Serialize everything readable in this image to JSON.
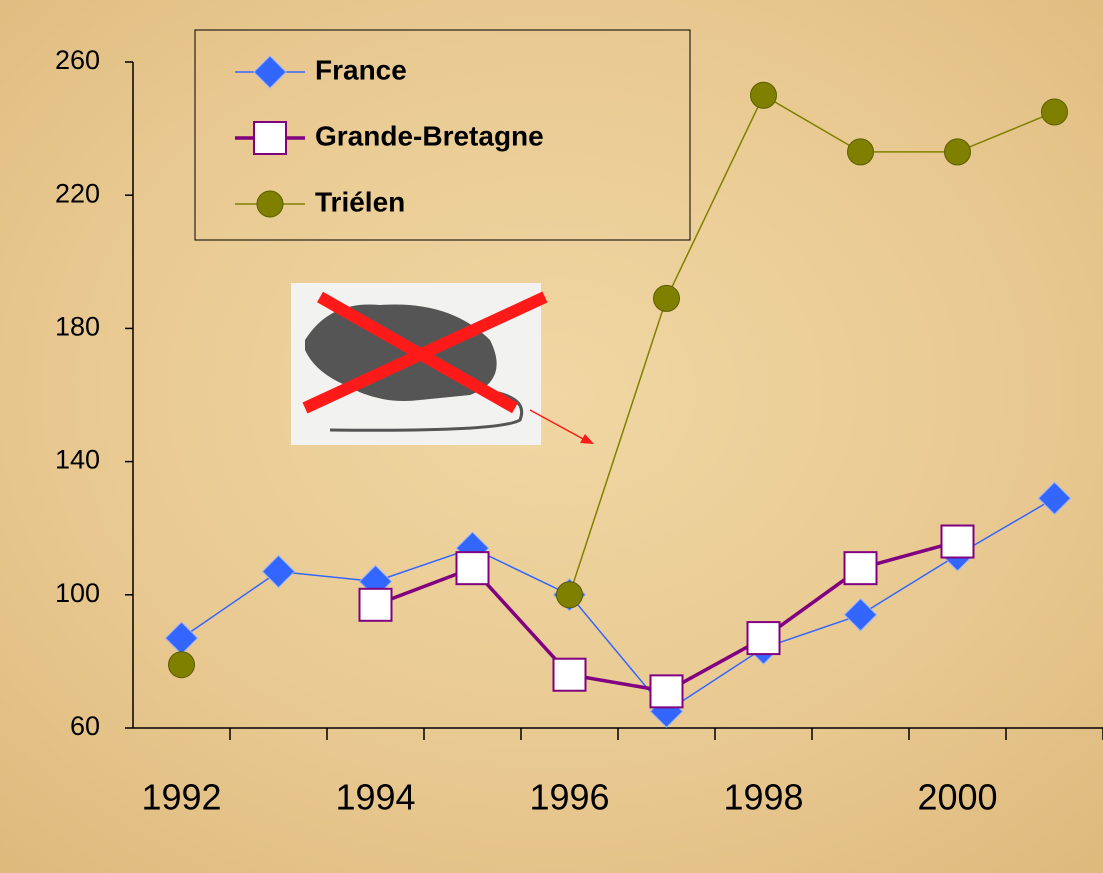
{
  "chart_data": {
    "type": "line",
    "categories": [
      "1992",
      null,
      "1994",
      null,
      "1996",
      null,
      "1998",
      null,
      "2000",
      null
    ],
    "series": [
      {
        "name": "France",
        "color": "#3366ff",
        "marker": "diamond",
        "values": [
          87,
          107,
          104,
          114,
          100,
          65,
          84,
          94,
          112,
          129
        ]
      },
      {
        "name": "Grande-Bretagne",
        "color": "#800080",
        "marker": "square",
        "values": [
          null,
          null,
          97,
          108,
          76,
          71,
          87,
          108,
          116,
          null
        ]
      },
      {
        "name": "Triélen",
        "color": "#808000",
        "marker": "circle",
        "values": [
          79,
          null,
          null,
          null,
          100,
          189,
          250,
          233,
          233,
          245
        ]
      }
    ],
    "ylim": [
      60,
      260
    ],
    "yticks": [
      60,
      100,
      140,
      180,
      220,
      260
    ],
    "grid": false,
    "legend": "top-left"
  }
}
